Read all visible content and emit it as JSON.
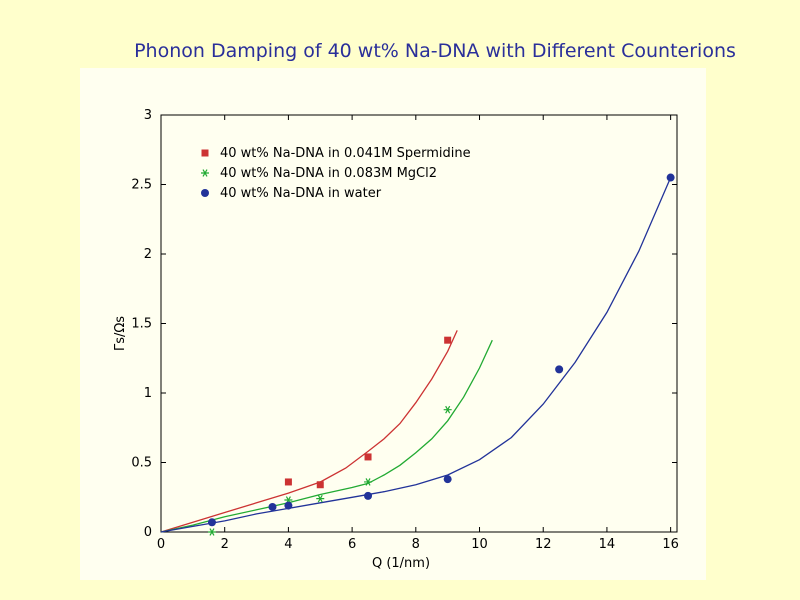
{
  "slide": {
    "title": "Phonon Damping of 40 wt% Na-DNA with Different Counterions"
  },
  "chart_data": {
    "type": "scatter",
    "xlabel": "Q (1/nm)",
    "ylabel": "Γs/Ωs",
    "xlim": [
      0,
      16.2
    ],
    "ylim": [
      0,
      3
    ],
    "xticks": [
      0,
      2,
      4,
      6,
      8,
      10,
      12,
      14,
      16
    ],
    "yticks": [
      0,
      0.5,
      1,
      1.5,
      2,
      2.5,
      3
    ],
    "grid": false,
    "legend_position": "top-left",
    "series": [
      {
        "name": "40 wt% Na-DNA in 0.041M Spermidine",
        "marker": "square",
        "color": "#cc3333",
        "points": [
          [
            4,
            0.36
          ],
          [
            5,
            0.34
          ],
          [
            6.5,
            0.54
          ],
          [
            9,
            1.38
          ]
        ],
        "fit": [
          [
            0,
            0
          ],
          [
            1,
            0.07
          ],
          [
            2,
            0.14
          ],
          [
            3,
            0.21
          ],
          [
            4,
            0.28
          ],
          [
            5,
            0.36
          ],
          [
            5.8,
            0.46
          ],
          [
            6.5,
            0.58
          ],
          [
            7,
            0.67
          ],
          [
            7.5,
            0.78
          ],
          [
            8,
            0.93
          ],
          [
            8.5,
            1.1
          ],
          [
            9,
            1.3
          ],
          [
            9.3,
            1.45
          ]
        ]
      },
      {
        "name": "40 wt% Na-DNA in 0.083M MgCl2",
        "marker": "asterisk",
        "color": "#22aa33",
        "points": [
          [
            1.6,
            0.0
          ],
          [
            4,
            0.23
          ],
          [
            5,
            0.24
          ],
          [
            6.5,
            0.36
          ],
          [
            9,
            0.88
          ]
        ],
        "fit": [
          [
            0,
            0
          ],
          [
            1,
            0.05
          ],
          [
            2,
            0.11
          ],
          [
            3,
            0.16
          ],
          [
            4,
            0.21
          ],
          [
            5,
            0.27
          ],
          [
            6,
            0.32
          ],
          [
            6.5,
            0.35
          ],
          [
            7,
            0.41
          ],
          [
            7.5,
            0.48
          ],
          [
            8,
            0.57
          ],
          [
            8.5,
            0.67
          ],
          [
            9,
            0.8
          ],
          [
            9.5,
            0.97
          ],
          [
            10,
            1.18
          ],
          [
            10.4,
            1.38
          ]
        ]
      },
      {
        "name": "40 wt% Na-DNA in water",
        "marker": "circle",
        "color": "#223399",
        "points": [
          [
            1.6,
            0.07
          ],
          [
            3.5,
            0.18
          ],
          [
            4,
            0.19
          ],
          [
            6.5,
            0.26
          ],
          [
            9,
            0.38
          ],
          [
            12.5,
            1.17
          ],
          [
            16,
            2.55
          ]
        ],
        "fit": [
          [
            0,
            0
          ],
          [
            1,
            0.04
          ],
          [
            2,
            0.08
          ],
          [
            3,
            0.13
          ],
          [
            4,
            0.17
          ],
          [
            5,
            0.21
          ],
          [
            6,
            0.25
          ],
          [
            7,
            0.29
          ],
          [
            8,
            0.34
          ],
          [
            9,
            0.41
          ],
          [
            10,
            0.52
          ],
          [
            11,
            0.68
          ],
          [
            12,
            0.92
          ],
          [
            13,
            1.22
          ],
          [
            14,
            1.58
          ],
          [
            15,
            2.02
          ],
          [
            16,
            2.55
          ]
        ]
      }
    ]
  }
}
